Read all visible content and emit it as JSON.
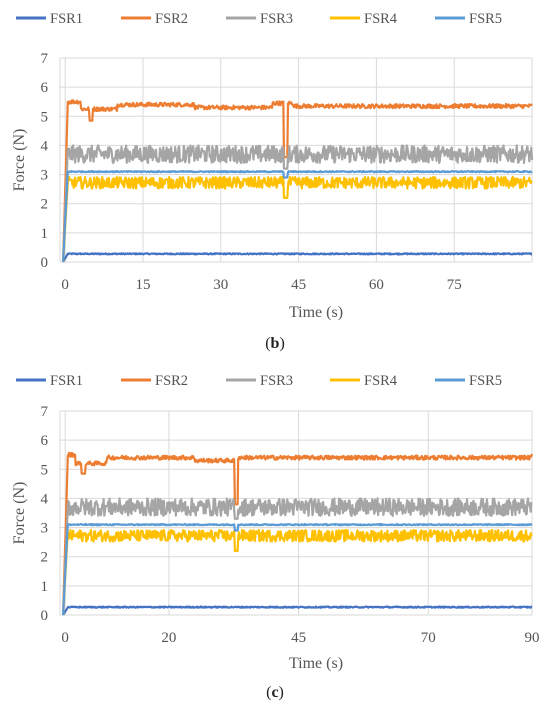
{
  "chart_data": [
    {
      "type": "line",
      "panel": "b",
      "xlabel": "Time (s)",
      "ylabel": "Force (N)",
      "xlim": [
        -1,
        90
      ],
      "ylim": [
        0,
        7
      ],
      "xticks": [
        0,
        15,
        30,
        45,
        60,
        75
      ],
      "yticks": [
        0,
        1,
        2,
        3,
        4,
        5,
        6,
        7
      ],
      "grid": true,
      "legend": "top",
      "series": [
        {
          "name": "FSR1",
          "color": "#4472c4",
          "level": 0.28,
          "noise": 0.02,
          "dips": []
        },
        {
          "name": "FSR2",
          "color": "#ed7d31",
          "level": 5.35,
          "noise": 0.07,
          "steps": [
            [
              -1,
              5.5
            ],
            [
              3,
              5.25
            ],
            [
              10,
              5.4
            ],
            [
              25,
              5.3
            ],
            [
              40,
              5.45
            ],
            [
              44,
              5.35
            ],
            [
              90,
              5.45
            ]
          ],
          "dips": [
            [
              5,
              4.85
            ],
            [
              42.5,
              3.6
            ]
          ]
        },
        {
          "name": "FSR3",
          "color": "#a5a5a5",
          "level": 3.7,
          "noise": 0.3,
          "dips": [
            [
              42.5,
              3.2
            ]
          ]
        },
        {
          "name": "FSR4",
          "color": "#ffc000",
          "level": 2.72,
          "noise": 0.2,
          "dips": [
            [
              42.5,
              2.2
            ]
          ]
        },
        {
          "name": "FSR5",
          "color": "#5b9bd5",
          "level": 3.1,
          "noise": 0.02,
          "dips": [
            [
              42.5,
              2.9
            ]
          ]
        }
      ],
      "caption": "(b)"
    },
    {
      "type": "line",
      "panel": "c",
      "xlabel": "Time (s)",
      "ylabel": "Force (N)",
      "xlim": [
        -1,
        90
      ],
      "ylim": [
        0,
        7
      ],
      "xticks": [
        0,
        20,
        45,
        70,
        90
      ],
      "yticks": [
        0,
        1,
        2,
        3,
        4,
        5,
        6,
        7
      ],
      "grid": true,
      "legend": "top",
      "series": [
        {
          "name": "FSR1",
          "color": "#4472c4",
          "level": 0.27,
          "noise": 0.02,
          "dips": []
        },
        {
          "name": "FSR2",
          "color": "#ed7d31",
          "level": 5.35,
          "noise": 0.07,
          "steps": [
            [
              -1,
              5.5
            ],
            [
              2,
              5.2
            ],
            [
              8,
              5.4
            ],
            [
              25,
              5.3
            ],
            [
              33,
              5.4
            ],
            [
              90,
              5.5
            ]
          ],
          "dips": [
            [
              3.5,
              4.85
            ],
            [
              33,
              3.8
            ]
          ]
        },
        {
          "name": "FSR3",
          "color": "#a5a5a5",
          "level": 3.7,
          "noise": 0.3,
          "dips": [
            [
              33,
              3.3
            ]
          ]
        },
        {
          "name": "FSR4",
          "color": "#ffc000",
          "level": 2.72,
          "noise": 0.2,
          "dips": [
            [
              33,
              2.2
            ]
          ]
        },
        {
          "name": "FSR5",
          "color": "#5b9bd5",
          "level": 3.1,
          "noise": 0.02,
          "dips": [
            [
              33,
              2.9
            ]
          ]
        }
      ],
      "caption": "(c)"
    }
  ]
}
